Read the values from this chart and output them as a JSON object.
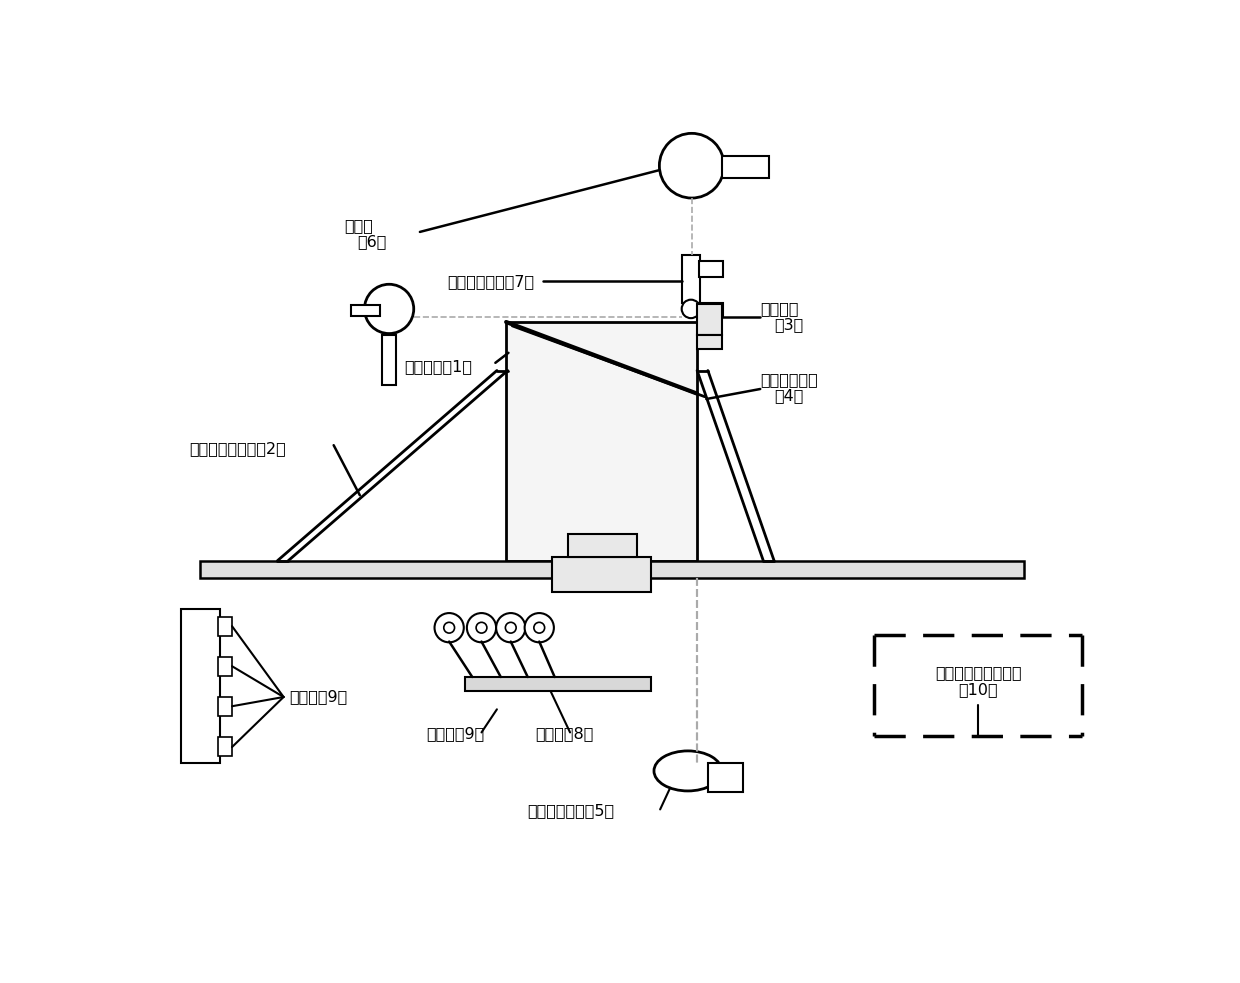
{
  "bg_color": "#ffffff",
  "lc": "#000000",
  "dc": "#aaaaaa",
  "labels": {
    "1": "卫星本体（1）",
    "2": "相控阵雷达天线（2）",
    "3_a": "星敏感器",
    "3_b": "（3）",
    "4_a": "星敏感器棱镜",
    "4_b": "（4）",
    "5": "摄影测量相机（5）",
    "6_a": "经纬伪",
    "6_b": "（6）",
    "7": "光电自准直伪（7）",
    "8": "基准尺（8）",
    "9a": "基准点（9）",
    "9b": "基准点（9）",
    "10_a": "数据采集及处理系统",
    "10_b": "（10）"
  }
}
